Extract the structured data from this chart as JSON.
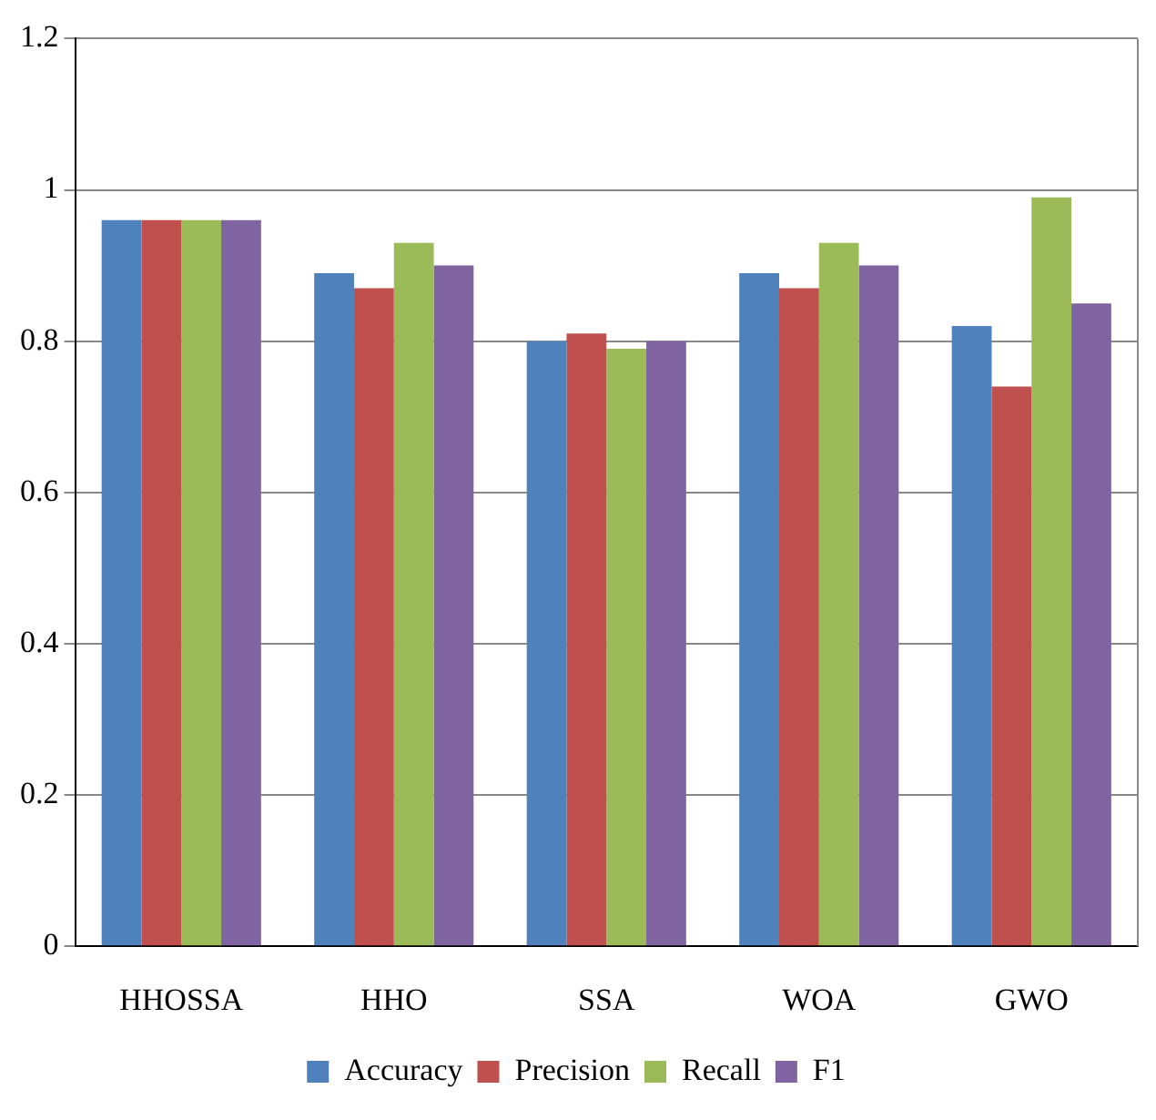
{
  "chart_data": {
    "type": "bar",
    "categories": [
      "HHOSSA",
      "HHO",
      "SSA",
      "WOA",
      "GWO"
    ],
    "series": [
      {
        "name": "Accuracy",
        "color": "#4f81bd",
        "values": [
          0.96,
          0.89,
          0.8,
          0.89,
          0.82
        ]
      },
      {
        "name": "Precision",
        "color": "#c0504d",
        "values": [
          0.96,
          0.87,
          0.81,
          0.87,
          0.74
        ]
      },
      {
        "name": "Recall",
        "color": "#9bbb59",
        "values": [
          0.96,
          0.93,
          0.79,
          0.93,
          0.99
        ]
      },
      {
        "name": "F1",
        "color": "#8064a2",
        "values": [
          0.96,
          0.9,
          0.8,
          0.9,
          0.85
        ]
      }
    ],
    "ylim": [
      0,
      1.2
    ],
    "yticks": [
      0,
      0.2,
      0.4,
      0.6,
      0.8,
      1,
      1.2
    ],
    "grid": "y",
    "legend": "bottom"
  }
}
